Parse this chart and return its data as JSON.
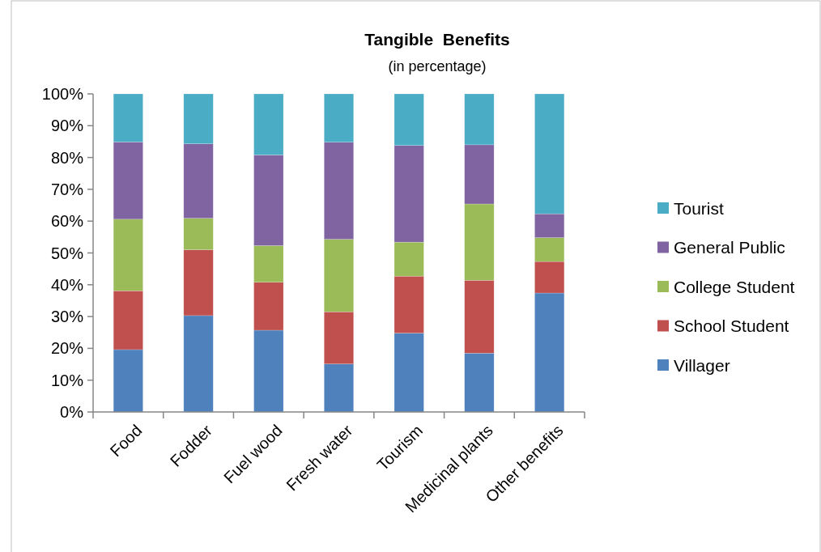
{
  "chart_data": {
    "type": "bar",
    "stacked": true,
    "title": "Tangible  Benefits",
    "subtitle": "(in percentage)",
    "categories": [
      "Food",
      "Fodder",
      "Fuel wood",
      "Fresh water",
      "Tourism",
      "Medicinal plants",
      "Other benefits"
    ],
    "series": [
      {
        "name": "Villager",
        "color": "#4f81bd",
        "values": [
          19.6,
          30.3,
          25.7,
          15.1,
          24.8,
          18.5,
          37.4
        ]
      },
      {
        "name": "School Student",
        "color": "#c0504d",
        "values": [
          18.5,
          20.7,
          15.1,
          16.4,
          17.9,
          22.9,
          9.9
        ]
      },
      {
        "name": "College Student",
        "color": "#9bbb59",
        "values": [
          22.5,
          9.9,
          11.5,
          22.8,
          10.7,
          24.0,
          7.5
        ]
      },
      {
        "name": "General Public",
        "color": "#8064a2",
        "values": [
          24.3,
          23.4,
          28.5,
          30.5,
          30.4,
          18.6,
          7.5
        ]
      },
      {
        "name": "Tourist",
        "color": "#4bacc6",
        "values": [
          15.1,
          15.7,
          19.2,
          15.2,
          16.2,
          16.0,
          37.7
        ]
      }
    ],
    "ylim": [
      0,
      100
    ],
    "yticks": [
      {
        "value": 0,
        "label": "0%"
      },
      {
        "value": 10,
        "label": "10%"
      },
      {
        "value": 20,
        "label": "20%"
      },
      {
        "value": 30,
        "label": "30%"
      },
      {
        "value": 40,
        "label": "40%"
      },
      {
        "value": 50,
        "label": "50%"
      },
      {
        "value": 60,
        "label": "60%"
      },
      {
        "value": 70,
        "label": "70%"
      },
      {
        "value": 80,
        "label": "80%"
      },
      {
        "value": 90,
        "label": "90%"
      },
      {
        "value": 100,
        "label": "100%"
      }
    ],
    "grid": false,
    "legend": "right"
  }
}
